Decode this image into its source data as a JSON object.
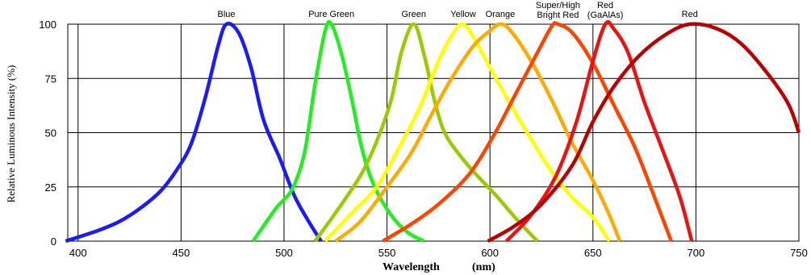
{
  "chart_data": {
    "type": "line",
    "title": "",
    "xlabel": "Wavelength",
    "xunit": "(nm)",
    "ylabel": "Relative Luminous Intensity (%)",
    "xlim": [
      395,
      750
    ],
    "ylim": [
      0,
      100
    ],
    "x_ticks": [
      400,
      450,
      500,
      550,
      600,
      650,
      700,
      750
    ],
    "y_ticks": [
      0,
      25,
      50,
      75,
      100
    ],
    "grid": true,
    "legend": "none",
    "series": [
      {
        "name": "Blue",
        "label_lines": [
          "Blue"
        ],
        "color": "#1a1aff",
        "points": [
          [
            394,
            0
          ],
          [
            410,
            5
          ],
          [
            420,
            9
          ],
          [
            430,
            15
          ],
          [
            440,
            23
          ],
          [
            448,
            33
          ],
          [
            455,
            45
          ],
          [
            462,
            67
          ],
          [
            468,
            90
          ],
          [
            472,
            100
          ],
          [
            478,
            96
          ],
          [
            484,
            80
          ],
          [
            490,
            56
          ],
          [
            498,
            38
          ],
          [
            505,
            21
          ],
          [
            512,
            9
          ],
          [
            518,
            0
          ]
        ]
      },
      {
        "name": "Pure Green",
        "label_lines": [
          "Pure Green"
        ],
        "color": "#22ee22",
        "points": [
          [
            485,
            0
          ],
          [
            496,
            15
          ],
          [
            504,
            24
          ],
          [
            510,
            41
          ],
          [
            515,
            72
          ],
          [
            520,
            97
          ],
          [
            523,
            100
          ],
          [
            528,
            86
          ],
          [
            533,
            65
          ],
          [
            538,
            42
          ],
          [
            544,
            25
          ],
          [
            552,
            12
          ],
          [
            560,
            4
          ],
          [
            568,
            0
          ]
        ]
      },
      {
        "name": "Green",
        "label_lines": [
          "Green"
        ],
        "color": "#99cc00",
        "points": [
          [
            515,
            0
          ],
          [
            525,
            13
          ],
          [
            537,
            30
          ],
          [
            545,
            46
          ],
          [
            552,
            65
          ],
          [
            557,
            87
          ],
          [
            563,
            100
          ],
          [
            568,
            86
          ],
          [
            573,
            65
          ],
          [
            578,
            50
          ],
          [
            585,
            40
          ],
          [
            593,
            31
          ],
          [
            603,
            21
          ],
          [
            613,
            10
          ],
          [
            623,
            0
          ]
        ]
      },
      {
        "name": "Yellow",
        "label_lines": [
          "Yellow"
        ],
        "color": "#ffff00",
        "points": [
          [
            520,
            0
          ],
          [
            533,
            13
          ],
          [
            545,
            25
          ],
          [
            557,
            45
          ],
          [
            567,
            64
          ],
          [
            575,
            83
          ],
          [
            583,
            97
          ],
          [
            587,
            100
          ],
          [
            592,
            94
          ],
          [
            600,
            80
          ],
          [
            610,
            63
          ],
          [
            620,
            47
          ],
          [
            630,
            32
          ],
          [
            640,
            20
          ],
          [
            650,
            11
          ],
          [
            658,
            0
          ]
        ]
      },
      {
        "name": "Orange",
        "label_lines": [
          "Orange"
        ],
        "color": "#ffaa00",
        "points": [
          [
            525,
            0
          ],
          [
            537,
            9
          ],
          [
            550,
            25
          ],
          [
            562,
            41
          ],
          [
            572,
            59
          ],
          [
            582,
            76
          ],
          [
            592,
            90
          ],
          [
            600,
            97
          ],
          [
            605,
            100
          ],
          [
            610,
            97
          ],
          [
            620,
            83
          ],
          [
            630,
            65
          ],
          [
            640,
            45
          ],
          [
            650,
            28
          ],
          [
            658,
            12
          ],
          [
            663,
            0
          ]
        ]
      },
      {
        "name": "Super/High Bright Red",
        "label_lines": [
          "Super/High",
          "Bright Red"
        ],
        "color": "#ff4400",
        "points": [
          [
            548,
            0
          ],
          [
            562,
            8
          ],
          [
            575,
            17
          ],
          [
            590,
            31
          ],
          [
            602,
            49
          ],
          [
            612,
            67
          ],
          [
            622,
            85
          ],
          [
            630,
            99
          ],
          [
            633,
            100
          ],
          [
            640,
            96
          ],
          [
            650,
            82
          ],
          [
            660,
            63
          ],
          [
            670,
            44
          ],
          [
            678,
            25
          ],
          [
            684,
            10
          ],
          [
            688,
            0
          ]
        ]
      },
      {
        "name": "Red (GaAlAs)",
        "label_lines": [
          "Red",
          "(GaAlAs)"
        ],
        "color": "#ee1111",
        "points": [
          [
            608,
            0
          ],
          [
            620,
            12
          ],
          [
            632,
            30
          ],
          [
            642,
            55
          ],
          [
            650,
            83
          ],
          [
            656,
            100
          ],
          [
            660,
            98
          ],
          [
            667,
            87
          ],
          [
            675,
            64
          ],
          [
            683,
            44
          ],
          [
            692,
            21
          ],
          [
            698,
            0
          ]
        ]
      },
      {
        "name": "Red",
        "label_lines": [
          "Red"
        ],
        "color": "#bb0000",
        "points": [
          [
            599,
            0
          ],
          [
            612,
            7
          ],
          [
            625,
            17
          ],
          [
            640,
            35
          ],
          [
            650,
            55
          ],
          [
            660,
            71
          ],
          [
            672,
            85
          ],
          [
            685,
            95
          ],
          [
            697,
            100
          ],
          [
            710,
            98
          ],
          [
            722,
            91
          ],
          [
            735,
            77
          ],
          [
            745,
            63
          ],
          [
            750,
            50
          ]
        ]
      }
    ]
  }
}
